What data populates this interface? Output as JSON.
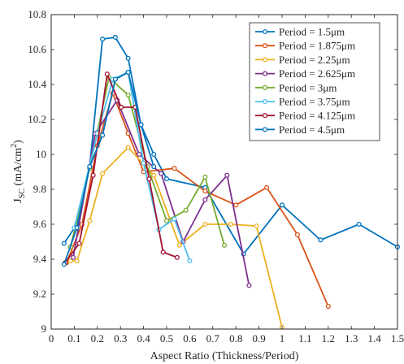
{
  "chart_data": {
    "type": "line",
    "title": "",
    "xlabel": "Aspect Ratio (Thickness/Period)",
    "ylabel": "J_SC (mA/cm^2)",
    "ylabel_parts": {
      "main": "J",
      "sub": "SC",
      "units_open": " (mA/cm",
      "units_sup": "2",
      "units_close": ")"
    },
    "xlim": [
      0,
      1.5
    ],
    "ylim": [
      9,
      10.8
    ],
    "xticks": [
      0,
      0.1,
      0.2,
      0.3,
      0.4,
      0.5,
      0.6,
      0.7,
      0.8,
      0.9,
      1,
      1.1,
      1.2,
      1.3,
      1.4,
      1.5
    ],
    "xtick_labels": [
      "0",
      "0.1",
      "0.2",
      "0.3",
      "0.4",
      "0.5",
      "0.6",
      "0.7",
      "0.8",
      "0.9",
      "1",
      "1.1",
      "1.2",
      "1.3",
      "1.4",
      "1.5"
    ],
    "yticks": [
      9,
      9.2,
      9.4,
      9.6,
      9.8,
      10,
      10.2,
      10.4,
      10.6,
      10.8
    ],
    "ytick_labels": [
      "9",
      "9.2",
      "9.4",
      "9.6",
      "9.8",
      "10",
      "10.2",
      "10.4",
      "10.6",
      "10.8"
    ],
    "grid": false,
    "legend_position": "top-right",
    "series": [
      {
        "name": "Period = 1.5μm",
        "color": "#0072BD",
        "marker": "circle",
        "x": [
          0.0556,
          0.1111,
          0.1667,
          0.2222,
          0.2778,
          0.3333,
          0.3889,
          0.4444,
          0.5,
          0.6667,
          0.8333,
          1.0,
          1.1667,
          1.3333,
          1.5
        ],
        "y": [
          9.49,
          9.6,
          9.93,
          10.66,
          10.67,
          10.55,
          10.17,
          10.0,
          9.86,
          9.81,
          9.43,
          9.71,
          9.51,
          9.6,
          9.47
        ]
      },
      {
        "name": "Period = 1.875μm",
        "color": "#D95319",
        "marker": "circle",
        "x": [
          0.0667,
          0.1333,
          0.2,
          0.2667,
          0.3333,
          0.4,
          0.5333,
          0.6667,
          0.8,
          0.9333,
          1.0667,
          1.2
        ],
        "y": [
          9.38,
          9.6,
          10.05,
          10.35,
          10.12,
          9.9,
          9.92,
          9.79,
          9.71,
          9.81,
          9.54,
          9.13
        ]
      },
      {
        "name": "Period = 2.25μm",
        "color": "#EDB120",
        "marker": "circle",
        "x": [
          0.0833,
          0.1111,
          0.1667,
          0.2222,
          0.3333,
          0.4444,
          0.5556,
          0.6667,
          0.7778,
          0.8889,
          1.0
        ],
        "y": [
          9.39,
          9.39,
          9.62,
          9.89,
          10.04,
          9.88,
          9.48,
          9.6,
          9.6,
          9.59,
          9.01
        ]
      },
      {
        "name": "Period = 2.625μm",
        "color": "#7E2F8E",
        "marker": "circle",
        "x": [
          0.0952,
          0.1905,
          0.2857,
          0.381,
          0.4762,
          0.5714,
          0.6667,
          0.7619,
          0.8571
        ],
        "y": [
          9.41,
          10.12,
          10.31,
          10.0,
          9.89,
          9.5,
          9.74,
          9.88,
          9.25
        ]
      },
      {
        "name": "Period = 3μm",
        "color": "#77AC30",
        "marker": "circle",
        "x": [
          0.0833,
          0.1667,
          0.25,
          0.3333,
          0.4167,
          0.5,
          0.5833,
          0.6667,
          0.75
        ],
        "y": [
          9.47,
          9.92,
          10.44,
          10.34,
          9.93,
          9.62,
          9.68,
          9.87,
          9.48
        ]
      },
      {
        "name": "Period = 3.75μm",
        "color": "#4DBEEE",
        "marker": "circle",
        "x": [
          0.1,
          0.2,
          0.2667,
          0.3333,
          0.4,
          0.4667,
          0.5333,
          0.6
        ],
        "y": [
          9.58,
          10.12,
          10.43,
          10.47,
          9.95,
          9.57,
          9.63,
          9.39
        ]
      },
      {
        "name": "Period = 4.125μm",
        "color": "#A2142F",
        "marker": "circle",
        "x": [
          0.0606,
          0.1212,
          0.1818,
          0.2424,
          0.303,
          0.3636,
          0.4242,
          0.4848,
          0.5455
        ],
        "y": [
          9.38,
          9.49,
          9.88,
          10.46,
          10.27,
          10.27,
          9.86,
          9.44,
          9.41
        ]
      },
      {
        "name": "Period = 4.5μm",
        "color": "#0072BD",
        "marker": "circle",
        "x": [
          0.0556,
          0.1111,
          0.1667,
          0.2222,
          0.2778,
          0.3333,
          0.3889,
          0.4444
        ],
        "y": [
          9.37,
          9.58,
          9.93,
          10.11,
          10.43,
          10.47,
          10.17,
          9.93
        ]
      }
    ]
  }
}
